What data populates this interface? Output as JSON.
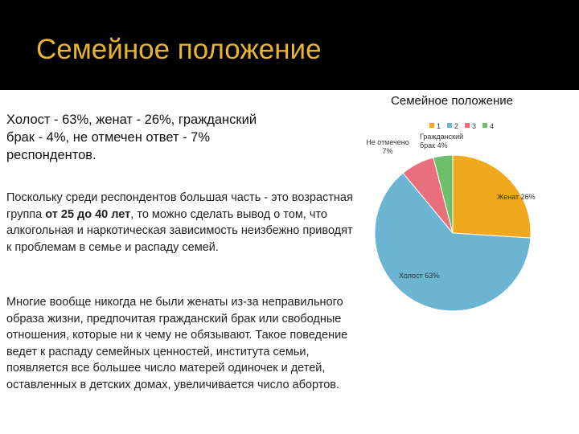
{
  "title": "Семейное положение",
  "summary": "Холост - 63%, женат - 26%, гражданский брак - 4%, не отмечен ответ - 7% респондентов.",
  "paragraphs": [
    [
      {
        "text": "Поскольку среди респондентов большая часть - это возрастная группа "
      },
      {
        "text": "от 25 до 40 лет",
        "bold": true
      },
      {
        "text": ", то можно сделать вывод о том, что алкогольная и наркотическая зависимость неизбежно приводят к проблемам в семье и распаду семей."
      }
    ],
    [
      {
        "text": "Многие вообще никогда не были женаты из-за неправильного образа жизни, предпочитая гражданский брак или свободные отношения, которые ни к чему не обязывают. Такое поведение ведет к распаду семейных ценностей, института семьи, появляется все большее число матерей одиночек и детей, оставленных в детских домах, увеличивается число абортов."
      }
    ]
  ],
  "chart_data": {
    "type": "pie",
    "title": "Семейное положение",
    "categories": [
      "1",
      "2",
      "3",
      "4"
    ],
    "values": [
      26,
      63,
      7,
      4
    ],
    "value_labels": [
      "Женат 26%",
      "Холост 63%",
      "Не отмечено 7%",
      "Гражданский брак 4%"
    ],
    "colors": [
      "#f0a81c",
      "#6bb4d2",
      "#e8707c",
      "#6cc06c"
    ]
  }
}
